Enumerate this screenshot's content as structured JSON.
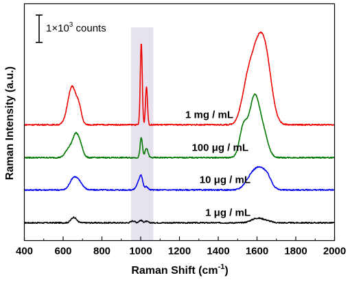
{
  "chart_data": {
    "type": "line",
    "title": "",
    "xlabel": "Raman Shift (cm",
    "xlabel_sup": "-1",
    "xlabel_end": ")",
    "ylabel": "Raman Intensity (a.u.)",
    "xlim": [
      400,
      2000
    ],
    "xticks": [
      400,
      600,
      800,
      1000,
      1200,
      1400,
      1600,
      1800,
      2000
    ],
    "highlight_band": {
      "x": [
        950,
        1065
      ],
      "color": "#e6e2ee"
    },
    "scale_bar": {
      "label": "1×10",
      "label_sup": "3",
      "label_end": " counts",
      "length_counts": 1000
    },
    "offset_units": "counts",
    "series": [
      {
        "name": "1 μg / mL",
        "color": "#000000",
        "baseline": 300,
        "peaks": [
          [
            655,
            200,
            14
          ],
          [
            960,
            70,
            10
          ],
          [
            1000,
            90,
            9
          ],
          [
            1030,
            50,
            9
          ],
          [
            1600,
            160,
            30
          ],
          [
            1650,
            60,
            25
          ]
        ]
      },
      {
        "name": "10 μg / mL",
        "color": "#0000ee",
        "baseline": 1500,
        "peaks": [
          [
            650,
            350,
            18
          ],
          [
            680,
            300,
            20
          ],
          [
            990,
            260,
            12
          ],
          [
            1003,
            400,
            8
          ],
          [
            1030,
            120,
            8
          ],
          [
            1560,
            250,
            28
          ],
          [
            1610,
            750,
            35
          ],
          [
            1655,
            280,
            22
          ]
        ]
      },
      {
        "name": "100 μg / mL",
        "color": "#007700",
        "baseline": 2680,
        "peaks": [
          [
            630,
            330,
            18
          ],
          [
            665,
            780,
            16
          ],
          [
            690,
            350,
            14
          ],
          [
            1003,
            720,
            6
          ],
          [
            1030,
            330,
            8
          ],
          [
            1530,
            1100,
            20
          ],
          [
            1585,
            2100,
            25
          ],
          [
            1630,
            900,
            25
          ]
        ]
      },
      {
        "name": "1 mg / mL",
        "color": "#ee0000",
        "baseline": 3880,
        "peaks": [
          [
            630,
            600,
            18
          ],
          [
            650,
            1000,
            16
          ],
          [
            680,
            700,
            14
          ],
          [
            1003,
            3000,
            5
          ],
          [
            1030,
            1400,
            5
          ],
          [
            1545,
            900,
            28
          ],
          [
            1605,
            2750,
            40
          ],
          [
            1650,
            1300,
            30
          ]
        ]
      }
    ]
  }
}
